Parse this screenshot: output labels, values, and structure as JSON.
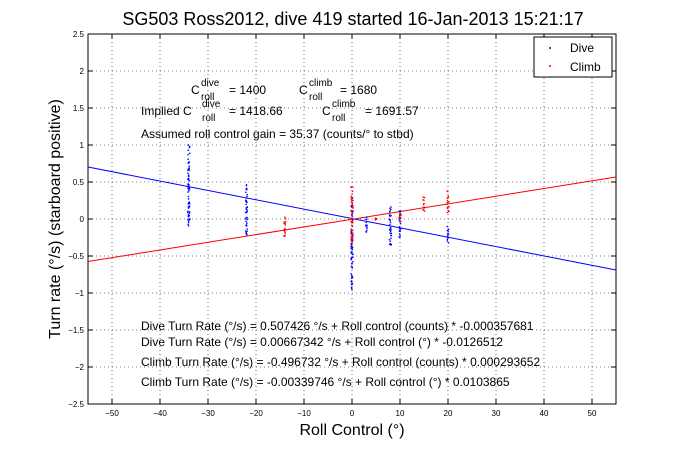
{
  "chart_data": {
    "type": "scatter",
    "title": "SG503 Ross2012, dive 419 started 16-Jan-2013 15:21:17",
    "xlabel": "Roll Control (°)",
    "ylabel": "Turn rate (°/s) (starboard positive)",
    "xlim": [
      -55,
      55
    ],
    "ylim": [
      -2.5,
      2.5
    ],
    "xticks": [
      -50,
      -40,
      -30,
      -20,
      -10,
      0,
      10,
      20,
      30,
      40,
      50
    ],
    "yticks": [
      -2.5,
      -2,
      -1.5,
      -1,
      -0.5,
      0,
      0.5,
      1,
      1.5,
      2,
      2.5
    ],
    "grid": true,
    "legend_position": "top-right",
    "colors": {
      "dive": "#0000ff",
      "climb": "#ff0000"
    },
    "series": [
      {
        "name": "Dive",
        "kind": "points",
        "color": "#0000ff",
        "clusters": [
          {
            "x": -34,
            "ymin": -0.1,
            "ymax": 1.05
          },
          {
            "x": -22,
            "ymin": -0.22,
            "ymax": 0.48
          },
          {
            "x": 0,
            "ymin": -0.95,
            "ymax": 0.3
          },
          {
            "x": 3,
            "ymin": -0.2,
            "ymax": 0.05
          },
          {
            "x": 8,
            "ymin": -0.35,
            "ymax": 0.18
          },
          {
            "x": 10,
            "ymin": -0.25,
            "ymax": 0.12
          },
          {
            "x": 20,
            "ymin": -0.33,
            "ymax": -0.1
          }
        ]
      },
      {
        "name": "Climb",
        "kind": "points",
        "color": "#ff0000",
        "clusters": [
          {
            "x": -14,
            "ymin": -0.25,
            "ymax": 0.05
          },
          {
            "x": 0,
            "ymin": -0.38,
            "ymax": 0.45
          },
          {
            "x": 5,
            "ymin": -0.05,
            "ymax": 0.02
          },
          {
            "x": 10,
            "ymin": -0.04,
            "ymax": 0.08
          },
          {
            "x": 15,
            "ymin": 0.1,
            "ymax": 0.3
          },
          {
            "x": 20,
            "ymin": 0.08,
            "ymax": 0.4
          }
        ]
      },
      {
        "kind": "fit-line",
        "color": "#0000ff",
        "intercept": 0.00667342,
        "slope": -0.0126512
      },
      {
        "kind": "fit-line",
        "color": "#ff0000",
        "intercept": -0.00339746,
        "slope": 0.0103865
      }
    ],
    "legend": [
      {
        "label": "Dive",
        "color": "#0000ff"
      },
      {
        "label": "Climb",
        "color": "#ff0000"
      }
    ],
    "annotations": {
      "c_label": "C",
      "dive_sup": "dive",
      "climb_sup": "climb",
      "roll_sub": "roll",
      "c_dive_value": "= 1400",
      "c_climb_value": "= 1680",
      "implied_prefix": "Implied C",
      "implied_dive_value": "= 1418.66",
      "implied_climb_value": "= 1691.57",
      "gain_text": "Assumed roll control gain = 35.37 (counts/° to stbd)",
      "fits": [
        "Dive Turn Rate (°/s) = 0.507426 °/s + Roll control (counts) * -0.000357681",
        "Dive Turn Rate (°/s) = 0.00667342 °/s + Roll control (°) * -0.0126512",
        "Climb Turn Rate (°/s) = -0.496732 °/s + Roll control (counts) * 0.000293652",
        "Climb Turn Rate (°/s) = -0.00339746 °/s + Roll control (°) * 0.0103865"
      ]
    }
  }
}
